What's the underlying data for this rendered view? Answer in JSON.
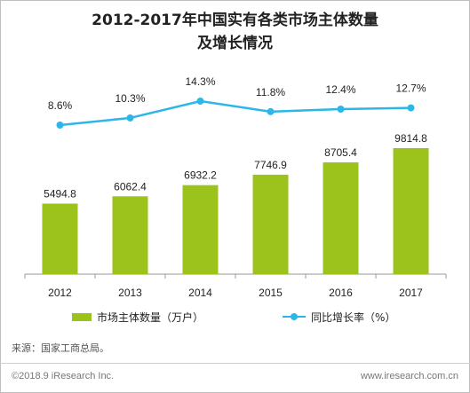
{
  "title_line1": "2012-2017年中国实有各类市场主体数量",
  "title_line2": "及增长情况",
  "source": "来源：国家工商总局。",
  "footer_left": "©2018.9 iResearch Inc.",
  "footer_right": "www.iresearch.com.cn",
  "colors": {
    "bar": "#9bc31c",
    "line": "#2db6e8",
    "axis": "#9a9a9a"
  },
  "chart_data": {
    "type": "bar+line",
    "categories": [
      "2012",
      "2013",
      "2014",
      "2015",
      "2016",
      "2017"
    ],
    "series": [
      {
        "name": "市场主体数量（万户）",
        "type": "bar",
        "values": [
          5494.8,
          6062.4,
          6932.2,
          7746.9,
          8705.4,
          9814.8
        ],
        "labels": [
          "5494.8",
          "6062.4",
          "6932.2",
          "7746.9",
          "8705.4",
          "9814.8"
        ]
      },
      {
        "name": "同比增长率（%）",
        "type": "line",
        "values": [
          8.6,
          10.3,
          14.3,
          11.8,
          12.4,
          12.7
        ],
        "labels": [
          "8.6%",
          "10.3%",
          "14.3%",
          "11.8%",
          "12.4%",
          "12.7%"
        ]
      }
    ],
    "legend_position": "bottom",
    "grid": false
  }
}
